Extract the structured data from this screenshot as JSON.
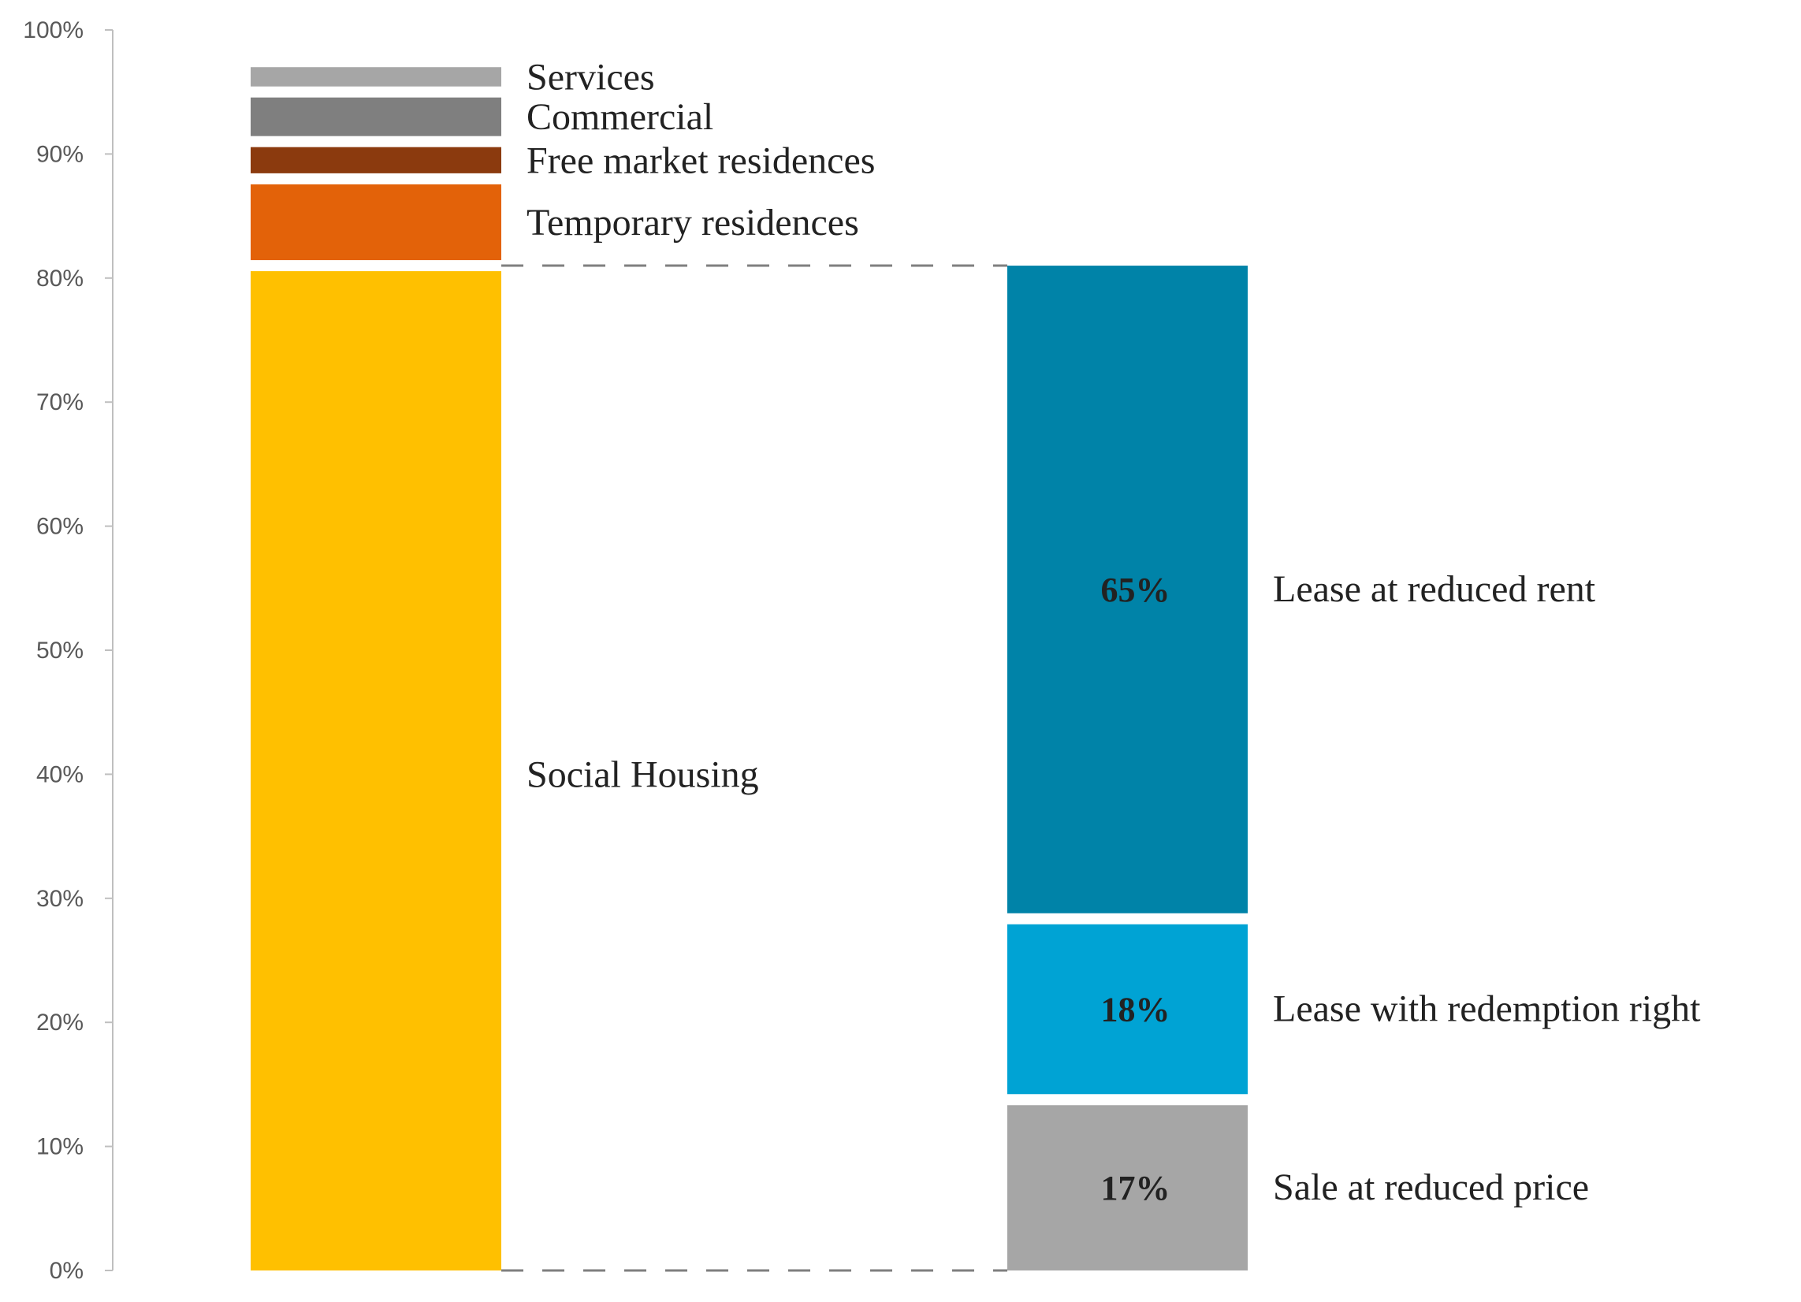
{
  "chart_data": {
    "type": "bar",
    "subtype": "stacked-100-bar-of-bar",
    "title": "",
    "xlabel": "",
    "ylabel": "",
    "ylim": [
      0,
      100
    ],
    "y_ticks": [
      0,
      10,
      20,
      30,
      40,
      50,
      60,
      70,
      80,
      90,
      100
    ],
    "y_tick_labels": [
      "0%",
      "10%",
      "20%",
      "30%",
      "40%",
      "50%",
      "60%",
      "70%",
      "80%",
      "90%",
      "100%"
    ],
    "grid": false,
    "left_bar": {
      "segments": [
        {
          "name": "Social Housing",
          "value": 81,
          "color": "#FFC000"
        },
        {
          "name": "Temporary residences",
          "value": 7,
          "color": "#E36209"
        },
        {
          "name": "Free market residences",
          "value": 3,
          "color": "#8B3A0E"
        },
        {
          "name": "Commercial",
          "value": 4,
          "color": "#7F7F7F"
        },
        {
          "name": "Services",
          "value": 2,
          "color": "#A6A6A6"
        }
      ]
    },
    "right_bar": {
      "breakdown_of": "Social Housing",
      "segments": [
        {
          "name": "Sale at reduced price",
          "value": 17,
          "label": "17%",
          "color": "#A6A6A6"
        },
        {
          "name": "Lease with redemption right",
          "value": 18,
          "label": "18%",
          "color": "#00A3D4"
        },
        {
          "name": "Lease at reduced rent",
          "value": 65,
          "label": "65%",
          "color": "#0083A8"
        }
      ]
    },
    "axis_color": "#BFBFBF",
    "connector_color": "#7F7F7F"
  }
}
